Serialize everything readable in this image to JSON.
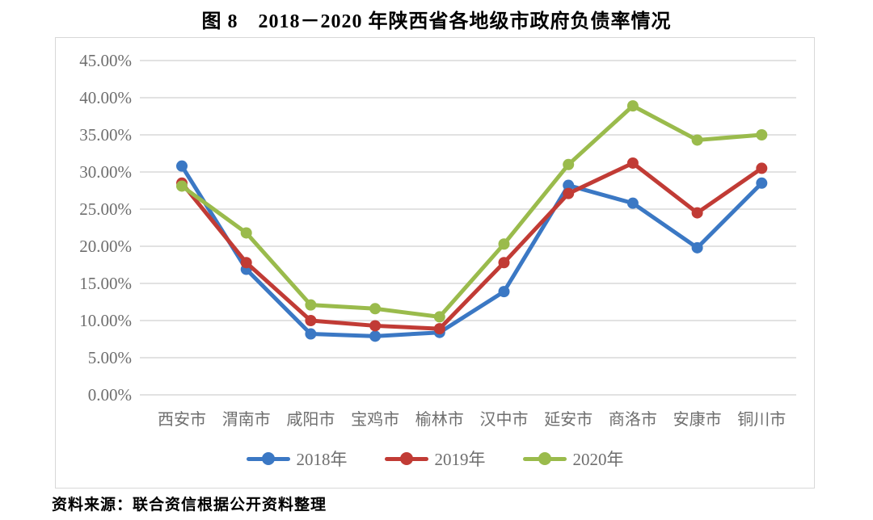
{
  "title": "图 8　2018－2020 年陕西省各地级市政府负债率情况",
  "source_note": "资料来源：联合资信根据公开资料整理",
  "colors": {
    "grid": "#d9d9d9",
    "frame_border": "#d8d8d8",
    "axis_text": "#6e6e6e",
    "series_2018": "#3b78c4",
    "series_2019": "#c13b35",
    "series_2020": "#9abb4c"
  },
  "chart_data": {
    "type": "line",
    "title": "图 8　2018－2020 年陕西省各地级市政府负债率情况",
    "categories": [
      "西安市",
      "渭南市",
      "咸阳市",
      "宝鸡市",
      "榆林市",
      "汉中市",
      "延安市",
      "商洛市",
      "安康市",
      "铜川市"
    ],
    "series": [
      {
        "name": "2018年",
        "color": "#3b78c4",
        "values": [
          30.8,
          16.9,
          8.2,
          7.9,
          8.4,
          13.9,
          28.2,
          25.8,
          19.8,
          28.5
        ]
      },
      {
        "name": "2019年",
        "color": "#c13b35",
        "values": [
          28.5,
          17.8,
          10.0,
          9.3,
          8.9,
          17.8,
          27.1,
          31.2,
          24.5,
          30.5
        ]
      },
      {
        "name": "2020年",
        "color": "#9abb4c",
        "values": [
          28.1,
          21.8,
          12.1,
          11.6,
          10.5,
          20.3,
          31.0,
          38.9,
          34.3,
          35.0
        ]
      }
    ],
    "yticks": [
      "45.00%",
      "40.00%",
      "35.00%",
      "30.00%",
      "25.00%",
      "20.00%",
      "15.00%",
      "10.00%",
      "5.00%",
      "0.00%"
    ],
    "ylim": [
      0,
      45
    ],
    "ytick_step": 5,
    "xlabel": "",
    "ylabel": "",
    "grid": true,
    "legend_position": "bottom",
    "marker": "circle"
  }
}
